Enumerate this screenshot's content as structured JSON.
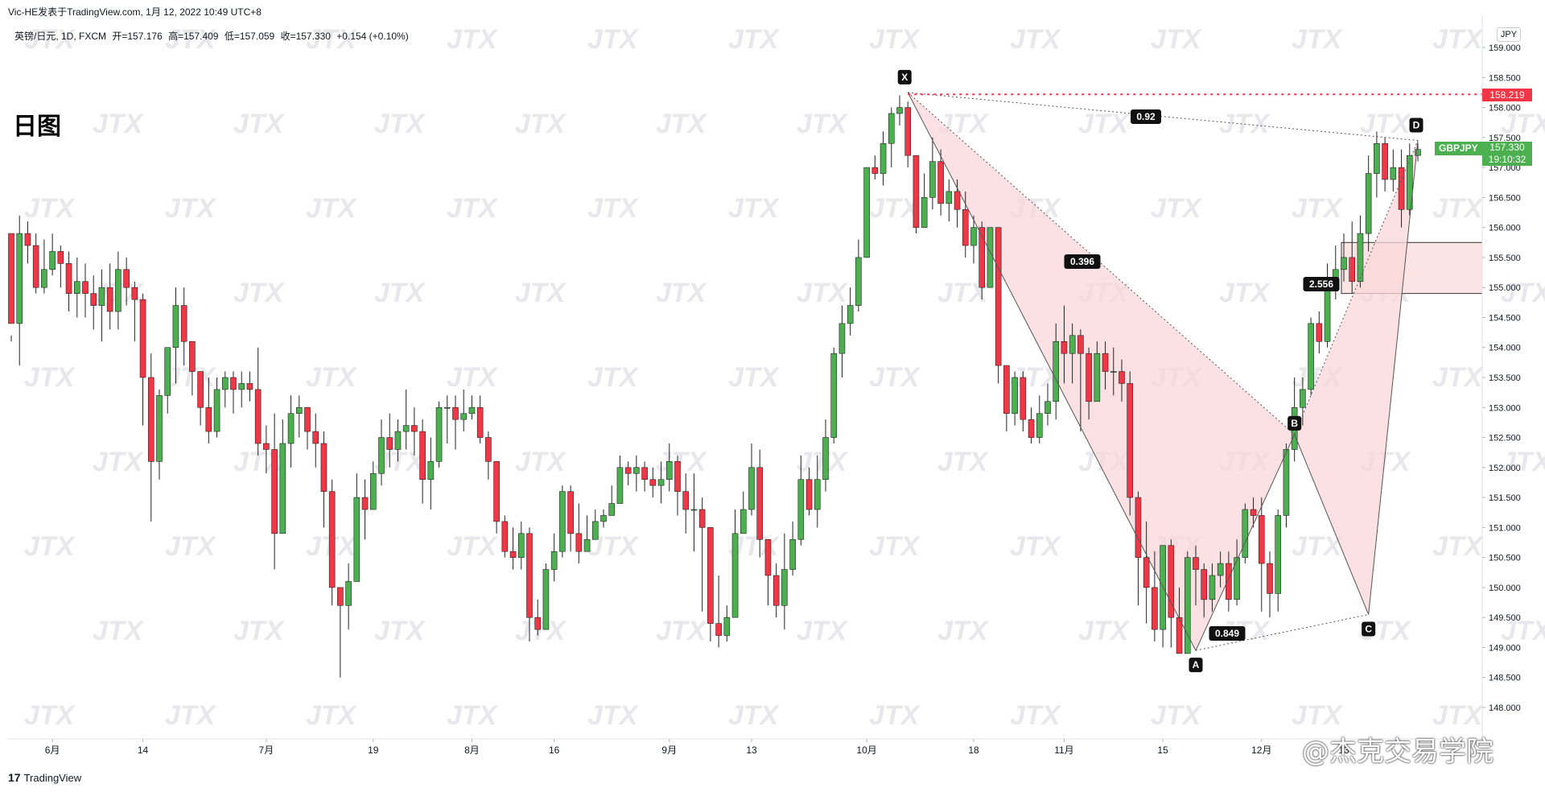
{
  "header": {
    "source_line": "Vic-HE发表于TradingView.com,  1月 12, 2022 10:49 UTC+8",
    "symbol_line": "英镑/日元, 1D, FXCM",
    "ohlc": {
      "open": "开=157.176",
      "high": "高=157.409",
      "low": "低=157.059",
      "close": "收=157.330",
      "change": "+0.154 (+0.10%)"
    }
  },
  "period_label": "日图",
  "currency_label": "JPY",
  "ticker": "GBPJPY",
  "last_price": "157.330",
  "countdown": "19:10:32",
  "level_label": "158.219",
  "footer": {
    "brand": "TradingView",
    "logo": "17"
  },
  "wechat_watermark": "@杰克交易学院",
  "watermark_text": "JTX",
  "colors": {
    "up": "#4caf50",
    "down": "#f23645",
    "pattern_fill": "#f9d7d9",
    "level_line": "#f23645",
    "box_fill": "#fde4e4"
  },
  "chart_data": {
    "type": "candlestick",
    "y_axis": {
      "ticks": [
        "159.000",
        "158.500",
        "158.000",
        "157.500",
        "157.000",
        "156.500",
        "156.000",
        "155.500",
        "155.000",
        "154.500",
        "154.000",
        "153.500",
        "153.000",
        "152.500",
        "152.000",
        "151.500",
        "151.000",
        "150.500",
        "150.000",
        "149.500",
        "149.000",
        "148.500",
        "148.000"
      ],
      "ylim": [
        147.5,
        159.5
      ]
    },
    "x_axis": {
      "ticks": [
        "6月",
        "14",
        "7月",
        "19",
        "8月",
        "16",
        "9月",
        "13",
        "10月",
        "18",
        "11月",
        "15",
        "12月",
        "13"
      ]
    },
    "candles": [
      [
        155.9,
        156.1,
        154.4,
        154.2,
        154.1
      ],
      [
        154.4,
        156.0,
        155.9,
        156.2,
        153.7
      ],
      [
        155.9,
        155.9,
        155.7,
        156.1,
        155.4
      ],
      [
        155.7,
        155.8,
        155.0,
        155.9,
        154.9
      ],
      [
        155.0,
        155.1,
        155.3,
        155.8,
        154.9
      ],
      [
        155.3,
        155.3,
        155.6,
        155.9,
        155.2
      ],
      [
        155.6,
        155.6,
        155.4,
        155.7,
        155.0
      ],
      [
        155.4,
        155.4,
        154.9,
        155.6,
        154.6
      ],
      [
        154.9,
        155.0,
        155.1,
        155.5,
        154.5
      ],
      [
        155.1,
        155.1,
        154.9,
        155.4,
        154.5
      ],
      [
        154.9,
        154.9,
        154.7,
        155.2,
        154.3
      ],
      [
        154.7,
        154.8,
        155.0,
        155.3,
        154.1
      ],
      [
        155.0,
        155.0,
        154.6,
        155.4,
        154.3
      ],
      [
        154.6,
        154.6,
        155.3,
        155.6,
        154.3
      ],
      [
        155.3,
        155.3,
        155.0,
        155.5,
        154.7
      ],
      [
        155.0,
        155.0,
        154.8,
        155.1,
        154.1
      ],
      [
        154.8,
        154.8,
        153.5,
        154.9,
        152.7
      ],
      [
        153.5,
        153.6,
        152.1,
        153.9,
        151.1
      ],
      [
        152.1,
        152.2,
        153.2,
        153.3,
        151.8
      ],
      [
        153.2,
        153.3,
        154.0,
        154.0,
        152.9
      ],
      [
        154.0,
        154.0,
        154.7,
        155.0,
        153.4
      ],
      [
        154.7,
        154.7,
        154.1,
        155.0,
        153.7
      ],
      [
        154.1,
        154.1,
        153.6,
        154.1,
        153.2
      ],
      [
        153.6,
        153.5,
        153.0,
        153.6,
        152.7
      ],
      [
        153.0,
        153.0,
        152.6,
        153.5,
        152.4
      ],
      [
        152.6,
        152.6,
        153.3,
        153.5,
        152.5
      ],
      [
        153.3,
        153.3,
        153.5,
        153.6,
        153.0
      ],
      [
        153.5,
        153.4,
        153.3,
        153.6,
        152.9
      ],
      [
        153.3,
        153.3,
        153.4,
        153.6,
        153.0
      ],
      [
        153.4,
        153.4,
        153.3,
        153.6,
        153.1
      ],
      [
        153.3,
        153.3,
        152.4,
        154.0,
        152.2
      ],
      [
        152.4,
        152.4,
        152.3,
        152.7,
        151.9
      ],
      [
        152.3,
        152.3,
        150.9,
        152.9,
        150.3
      ],
      [
        150.9,
        150.9,
        152.4,
        152.8,
        151.6
      ],
      [
        152.4,
        152.5,
        152.9,
        153.2,
        152.0
      ],
      [
        152.9,
        152.9,
        153.0,
        153.2,
        152.5
      ],
      [
        153.0,
        153.0,
        152.6,
        153.0,
        152.3
      ],
      [
        152.6,
        152.7,
        152.4,
        152.9,
        152.0
      ],
      [
        152.4,
        152.4,
        151.6,
        152.6,
        151.0
      ],
      [
        151.6,
        151.6,
        150.0,
        151.8,
        149.7
      ],
      [
        150.0,
        150.1,
        149.7,
        150.0,
        148.5
      ],
      [
        149.7,
        149.8,
        150.1,
        150.4,
        149.3
      ],
      [
        150.1,
        150.1,
        151.5,
        151.9,
        150.3
      ],
      [
        151.5,
        151.5,
        151.3,
        151.8,
        150.8
      ],
      [
        151.3,
        151.3,
        151.9,
        152.1,
        151.3
      ],
      [
        151.9,
        151.9,
        152.5,
        152.8,
        151.7
      ],
      [
        152.5,
        152.5,
        152.3,
        152.9,
        152.0
      ],
      [
        152.3,
        152.3,
        152.6,
        152.8,
        152.1
      ],
      [
        152.6,
        152.6,
        152.7,
        153.3,
        152.3
      ],
      [
        152.7,
        152.7,
        152.6,
        153.0,
        152.2
      ],
      [
        152.6,
        152.5,
        151.8,
        152.8,
        151.4
      ],
      [
        151.8,
        151.7,
        152.1,
        152.5,
        151.3
      ],
      [
        152.1,
        152.1,
        153.0,
        153.1,
        152.0
      ],
      [
        153.0,
        152.8,
        153.0,
        153.2,
        152.4
      ],
      [
        153.0,
        153.1,
        152.8,
        153.2,
        152.3
      ],
      [
        152.8,
        152.8,
        152.9,
        153.3,
        152.6
      ],
      [
        152.9,
        153.0,
        153.0,
        153.2,
        152.8
      ],
      [
        153.0,
        153.0,
        152.5,
        153.2,
        152.4
      ],
      [
        152.5,
        152.5,
        152.1,
        152.6,
        151.8
      ],
      [
        152.1,
        152.1,
        151.1,
        152.1,
        150.9
      ],
      [
        151.1,
        151.1,
        150.6,
        151.2,
        150.5
      ],
      [
        150.6,
        150.6,
        150.5,
        151.0,
        150.3
      ],
      [
        150.5,
        150.4,
        150.9,
        151.1,
        150.3
      ],
      [
        150.9,
        150.9,
        149.5,
        151.0,
        149.1
      ],
      [
        149.5,
        149.5,
        149.3,
        149.8,
        149.2
      ],
      [
        149.3,
        149.3,
        150.3,
        150.4,
        149.3
      ],
      [
        150.3,
        150.4,
        150.6,
        150.9,
        150.1
      ],
      [
        150.6,
        150.6,
        151.6,
        151.7,
        150.5
      ],
      [
        151.6,
        151.6,
        150.9,
        151.7,
        150.6
      ],
      [
        150.9,
        150.9,
        150.6,
        151.4,
        150.4
      ],
      [
        150.6,
        150.6,
        150.8,
        151.2,
        150.6
      ],
      [
        150.8,
        150.8,
        151.1,
        151.3,
        150.9
      ],
      [
        151.1,
        151.2,
        151.2,
        151.3,
        151.0
      ],
      [
        151.2,
        151.3,
        151.4,
        151.7,
        151.3
      ],
      [
        151.4,
        151.4,
        152.0,
        152.2,
        151.4
      ],
      [
        152.0,
        152.0,
        151.9,
        152.1,
        151.7
      ],
      [
        151.9,
        151.9,
        152.0,
        152.2,
        151.6
      ],
      [
        152.0,
        152.0,
        151.8,
        152.1,
        151.6
      ],
      [
        151.8,
        151.8,
        151.7,
        152.0,
        151.5
      ],
      [
        151.7,
        151.7,
        151.8,
        152.1,
        151.4
      ],
      [
        151.8,
        151.8,
        152.1,
        152.4,
        151.6
      ],
      [
        152.1,
        152.1,
        151.6,
        152.2,
        151.2
      ],
      [
        151.6,
        151.6,
        151.3,
        151.9,
        150.9
      ],
      [
        151.3,
        151.3,
        151.3,
        151.9,
        150.6
      ],
      [
        151.3,
        151.3,
        151.0,
        151.5,
        149.6
      ],
      [
        151.0,
        151.0,
        149.4,
        151.0,
        149.1
      ],
      [
        149.4,
        149.4,
        149.2,
        150.2,
        149.0
      ],
      [
        149.2,
        149.2,
        149.5,
        149.7,
        149.1
      ],
      [
        149.5,
        149.5,
        150.9,
        151.3,
        149.6
      ],
      [
        150.9,
        150.9,
        151.3,
        151.6,
        151.0
      ],
      [
        151.3,
        151.3,
        152.0,
        152.4,
        151.2
      ],
      [
        152.0,
        152.0,
        150.8,
        152.3,
        150.5
      ],
      [
        150.8,
        150.8,
        150.2,
        150.8,
        149.7
      ],
      [
        150.2,
        150.2,
        149.7,
        150.4,
        149.5
      ],
      [
        149.7,
        149.6,
        150.3,
        150.9,
        149.3
      ],
      [
        150.3,
        150.3,
        150.8,
        151.1,
        150.2
      ],
      [
        150.8,
        150.8,
        151.8,
        152.2,
        150.7
      ],
      [
        151.8,
        151.8,
        151.3,
        152.0,
        151.2
      ],
      [
        151.3,
        151.3,
        151.8,
        152.2,
        151.0
      ],
      [
        151.8,
        151.8,
        152.5,
        152.8,
        151.6
      ],
      [
        152.5,
        152.6,
        153.9,
        154.0,
        152.4
      ],
      [
        153.9,
        153.9,
        154.4,
        154.7,
        153.5
      ],
      [
        154.4,
        154.5,
        154.7,
        155.0,
        154.2
      ],
      [
        154.7,
        154.7,
        155.5,
        155.8,
        154.6
      ],
      [
        155.5,
        155.5,
        157.0,
        157.0,
        155.5
      ],
      [
        157.0,
        157.0,
        156.9,
        157.2,
        156.8
      ],
      [
        156.9,
        156.9,
        157.4,
        157.6,
        156.7
      ],
      [
        157.4,
        157.5,
        157.9,
        158.0,
        157.0
      ],
      [
        157.9,
        158.0,
        158.0,
        158.2,
        157.7
      ],
      [
        158.0,
        157.9,
        157.2,
        158.1,
        157.0
      ],
      [
        157.2,
        157.2,
        156.0,
        157.2,
        155.9
      ],
      [
        156.0,
        156.0,
        156.5,
        156.9,
        156.0
      ],
      [
        156.5,
        156.5,
        157.1,
        157.5,
        156.3
      ],
      [
        157.1,
        157.0,
        156.4,
        157.3,
        156.2
      ],
      [
        156.4,
        156.4,
        156.6,
        156.8,
        156.1
      ],
      [
        156.6,
        156.6,
        156.3,
        156.8,
        156.0
      ],
      [
        156.3,
        156.2,
        155.7,
        156.6,
        155.5
      ],
      [
        155.7,
        155.8,
        156.0,
        156.2,
        155.4
      ],
      [
        156.0,
        156.0,
        155.0,
        156.1,
        154.8
      ],
      [
        155.0,
        155.1,
        156.0,
        156.0,
        155.0
      ],
      [
        156.0,
        156.0,
        153.7,
        156.0,
        153.4
      ],
      [
        153.7,
        153.7,
        152.9,
        153.6,
        152.6
      ],
      [
        152.9,
        152.9,
        153.5,
        153.6,
        152.7
      ],
      [
        153.5,
        153.5,
        152.8,
        153.6,
        152.6
      ],
      [
        152.8,
        152.8,
        152.5,
        153.0,
        152.4
      ],
      [
        152.5,
        152.5,
        152.9,
        153.2,
        152.4
      ],
      [
        152.9,
        152.9,
        153.1,
        153.4,
        152.7
      ],
      [
        153.1,
        153.1,
        154.1,
        154.4,
        152.8
      ],
      [
        154.1,
        154.1,
        153.9,
        154.7,
        153.4
      ],
      [
        153.9,
        153.9,
        154.2,
        154.4,
        153.4
      ],
      [
        154.2,
        154.2,
        153.9,
        154.3,
        152.6
      ],
      [
        153.9,
        153.9,
        153.1,
        154.0,
        152.8
      ],
      [
        153.1,
        153.1,
        153.9,
        154.1,
        153.1
      ],
      [
        153.9,
        153.9,
        153.6,
        154.1,
        153.3
      ],
      [
        153.6,
        153.6,
        153.6,
        154.0,
        153.2
      ],
      [
        153.6,
        153.6,
        153.4,
        153.8,
        153.1
      ],
      [
        153.4,
        153.4,
        151.5,
        153.6,
        151.2
      ],
      [
        151.5,
        151.5,
        150.5,
        151.6,
        149.7
      ],
      [
        150.5,
        150.5,
        150.0,
        151.1,
        149.4
      ],
      [
        150.0,
        150.0,
        149.3,
        150.6,
        149.1
      ],
      [
        149.3,
        149.3,
        150.7,
        150.7,
        149.0
      ],
      [
        150.7,
        150.7,
        149.5,
        150.8,
        149.0
      ],
      [
        149.5,
        149.5,
        148.9,
        150.0,
        148.9
      ],
      [
        148.9,
        149.0,
        150.5,
        150.6,
        149.0
      ],
      [
        150.5,
        150.5,
        150.3,
        150.7,
        149.7
      ],
      [
        150.3,
        150.3,
        149.8,
        150.4,
        149.5
      ],
      [
        149.8,
        149.8,
        150.2,
        150.4,
        149.6
      ],
      [
        150.2,
        150.2,
        150.4,
        150.6,
        150.0
      ],
      [
        150.4,
        150.4,
        149.8,
        150.6,
        149.6
      ],
      [
        149.8,
        149.8,
        150.5,
        150.8,
        149.7
      ],
      [
        150.5,
        150.5,
        151.3,
        151.4,
        150.4
      ],
      [
        151.3,
        151.3,
        151.2,
        151.5,
        151.0
      ],
      [
        151.2,
        151.2,
        150.4,
        151.5,
        149.6
      ],
      [
        150.4,
        150.4,
        149.9,
        150.6,
        149.5
      ],
      [
        149.9,
        149.9,
        151.2,
        151.3,
        149.6
      ],
      [
        151.2,
        151.2,
        152.3,
        152.4,
        151.0
      ],
      [
        152.3,
        152.3,
        153.0,
        153.5,
        152.1
      ],
      [
        153.0,
        153.0,
        153.3,
        153.5,
        152.7
      ],
      [
        153.3,
        153.3,
        154.4,
        154.5,
        153.2
      ],
      [
        154.4,
        154.4,
        154.1,
        154.6,
        153.9
      ],
      [
        154.1,
        154.1,
        155.0,
        155.4,
        154.0
      ],
      [
        155.0,
        155.0,
        155.3,
        155.7,
        154.8
      ],
      [
        155.3,
        155.3,
        155.5,
        155.9,
        155.1
      ],
      [
        155.5,
        155.5,
        155.1,
        156.1,
        154.9
      ],
      [
        155.1,
        155.1,
        155.9,
        156.2,
        155.0
      ],
      [
        155.9,
        155.9,
        156.9,
        157.2,
        155.6
      ],
      [
        156.9,
        156.9,
        157.4,
        157.6,
        156.5
      ],
      [
        157.4,
        157.4,
        156.8,
        157.5,
        156.6
      ],
      [
        156.8,
        156.8,
        157.0,
        157.3,
        156.6
      ],
      [
        157.0,
        157.0,
        156.3,
        157.3,
        156.0
      ],
      [
        156.3,
        156.3,
        157.2,
        157.4,
        156.2
      ],
      [
        157.2,
        157.2,
        157.3,
        157.4,
        157.1
      ]
    ],
    "pattern": {
      "points": [
        "X",
        "A",
        "B",
        "C",
        "D"
      ],
      "ratios": [
        "0.92",
        "0.396",
        "0.849",
        "2.556"
      ]
    },
    "level": 158.219,
    "zone": [
      154.9,
      155.75
    ]
  }
}
